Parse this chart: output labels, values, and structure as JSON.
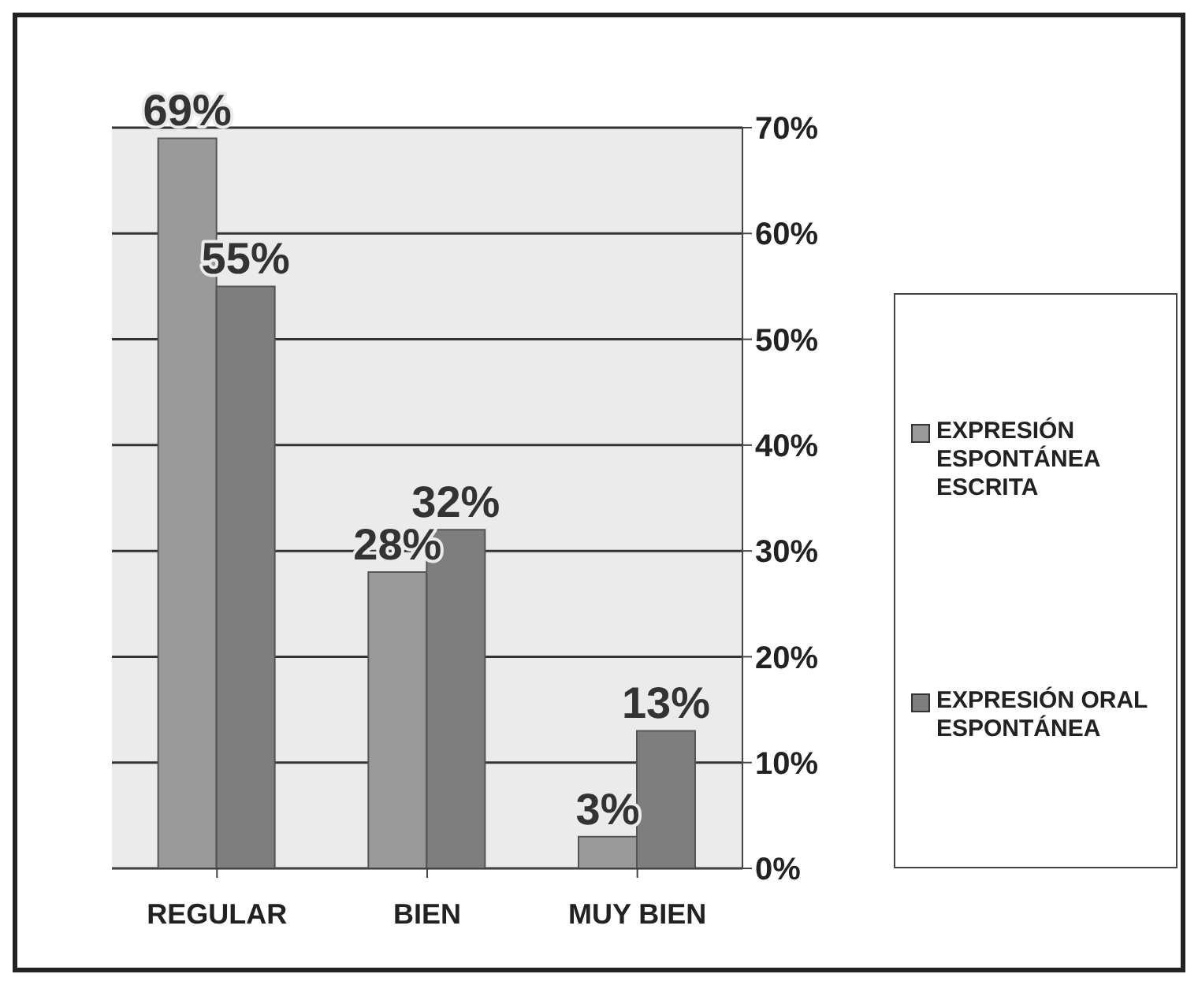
{
  "chart_data": {
    "type": "bar",
    "categories": [
      "REGULAR",
      "BIEN",
      "MUY BIEN"
    ],
    "series": [
      {
        "name": "EXPRESIÓN ESPONTÁNEA ESCRITA",
        "color": "#9a9a9a",
        "values": [
          69,
          28,
          3
        ],
        "value_labels": [
          "69%",
          "28%",
          "3%"
        ]
      },
      {
        "name": "EXPRESIÓN ORAL ESPONTÁNEA",
        "color": "#7e7e7e",
        "values": [
          55,
          32,
          13
        ],
        "value_labels": [
          "55%",
          "32%",
          "13%"
        ]
      }
    ],
    "ylim": [
      0,
      70
    ],
    "yticks": [
      {
        "value": 0,
        "label": "0%"
      },
      {
        "value": 10,
        "label": "10%"
      },
      {
        "value": 20,
        "label": "20%"
      },
      {
        "value": 30,
        "label": "30%"
      },
      {
        "value": 40,
        "label": "40%"
      },
      {
        "value": 50,
        "label": "50%"
      },
      {
        "value": 60,
        "label": "60%"
      },
      {
        "value": 70,
        "label": "70%"
      }
    ],
    "grid": "y",
    "legend": "right"
  }
}
